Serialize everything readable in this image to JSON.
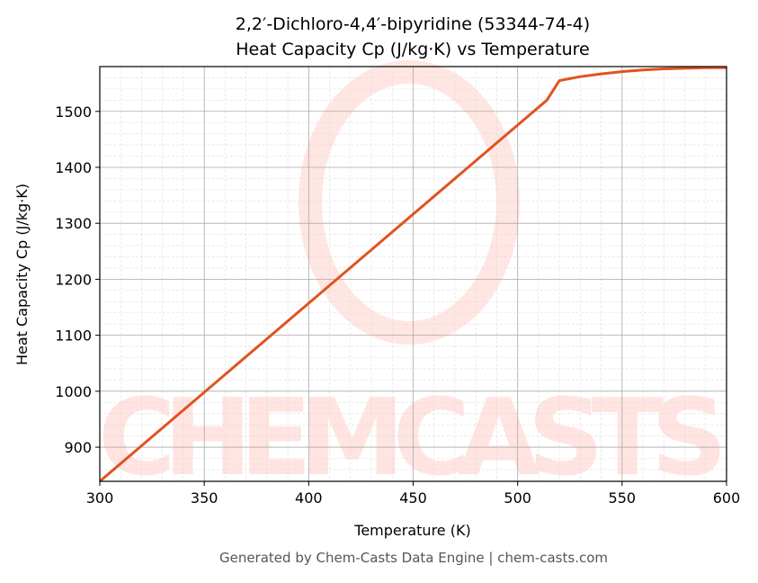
{
  "chart_data": {
    "type": "line",
    "title": "2,2′-Dichloro-4,4′-bipyridine (53344-74-4)",
    "subtitle": "Heat Capacity Cp (J/kg·K) vs Temperature",
    "xlabel": "Temperature (K)",
    "ylabel": "Heat Capacity Cp (J/kg·K)",
    "xlim": [
      300,
      600
    ],
    "ylim": [
      839,
      1580
    ],
    "xticks": [
      300,
      350,
      400,
      450,
      500,
      550,
      600
    ],
    "yticks": [
      900,
      1000,
      1100,
      1200,
      1300,
      1400,
      1500
    ],
    "grid": true,
    "line_color": "#e0531f",
    "series": [
      {
        "x": [
          300,
          514,
          520,
          530,
          540,
          550,
          560,
          570,
          580,
          590,
          600
        ],
        "y": [
          839,
          1520,
          1555,
          1562,
          1567,
          1571,
          1574,
          1576,
          1577,
          1578,
          1578
        ]
      }
    ],
    "footer": "Generated by Chem-Casts Data Engine | chem-casts.com",
    "watermark": "CHEMCASTS"
  }
}
